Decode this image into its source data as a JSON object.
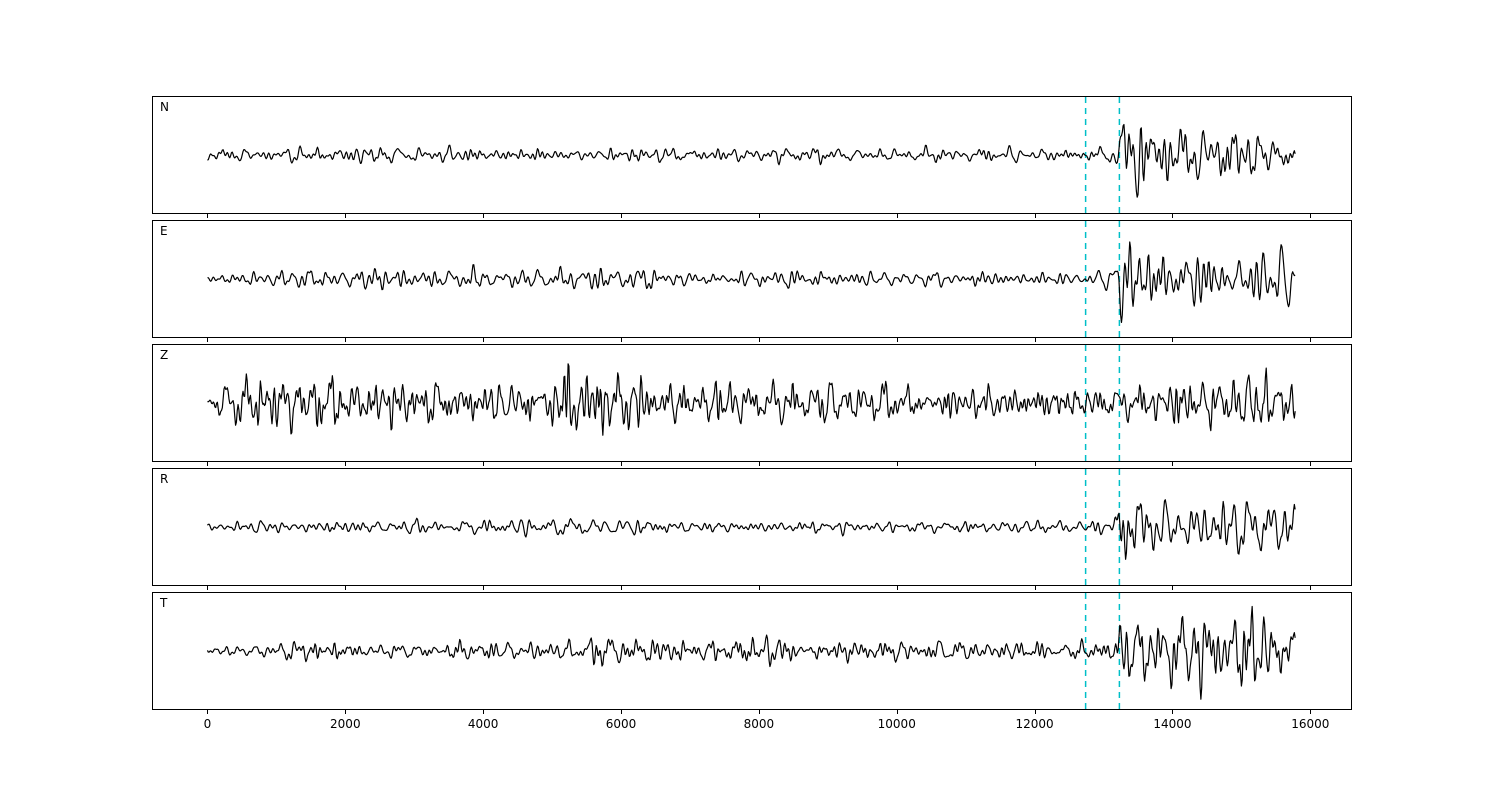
{
  "figure": {
    "background": "#ffffff",
    "trace_color": "#000000",
    "pick_color": "#00bfc8"
  },
  "chart_data": {
    "type": "line",
    "title": "",
    "xlabel": "",
    "ylabel": "",
    "legend": "none",
    "grid": false,
    "x_axis": {
      "lim": [
        -790,
        16590
      ],
      "ticks": [
        0,
        2000,
        4000,
        6000,
        8000,
        10000,
        12000,
        14000,
        16000
      ]
    },
    "x_range": [
      0,
      15790
    ],
    "sample_step": 12,
    "pick_lines": [
      {
        "x": 12740,
        "color": "#00bfc8",
        "style": "dashed"
      },
      {
        "x": 13230,
        "color": "#00bfc8",
        "style": "dashed"
      }
    ],
    "channels": [
      {
        "label": "N",
        "seed": 7,
        "period_band": [
          60,
          420
        ],
        "envelope": [
          [
            0,
            0.1
          ],
          [
            300,
            0.13
          ],
          [
            2000,
            0.16
          ],
          [
            5000,
            0.15
          ],
          [
            8000,
            0.14
          ],
          [
            11000,
            0.13
          ],
          [
            12740,
            0.14
          ],
          [
            13150,
            0.18
          ],
          [
            13230,
            0.95
          ],
          [
            13420,
            0.9
          ],
          [
            13800,
            0.55
          ],
          [
            14300,
            0.65
          ],
          [
            14800,
            0.5
          ],
          [
            15300,
            0.6
          ],
          [
            15790,
            0.45
          ]
        ]
      },
      {
        "label": "E",
        "seed": 11,
        "period_band": [
          60,
          420
        ],
        "envelope": [
          [
            0,
            0.08
          ],
          [
            400,
            0.14
          ],
          [
            1500,
            0.22
          ],
          [
            3000,
            0.2
          ],
          [
            5500,
            0.22
          ],
          [
            7000,
            0.18
          ],
          [
            9000,
            0.16
          ],
          [
            11000,
            0.14
          ],
          [
            12740,
            0.15
          ],
          [
            13150,
            0.2
          ],
          [
            13240,
            0.95
          ],
          [
            13500,
            0.8
          ],
          [
            14000,
            0.6
          ],
          [
            14600,
            0.65
          ],
          [
            15200,
            0.5
          ],
          [
            15790,
            0.6
          ]
        ]
      },
      {
        "label": "Z",
        "seed": 23,
        "period_band": [
          48,
          380
        ],
        "envelope": [
          [
            0,
            0.06
          ],
          [
            350,
            0.45
          ],
          [
            700,
            0.6
          ],
          [
            1200,
            0.55
          ],
          [
            1700,
            0.65
          ],
          [
            2200,
            0.5
          ],
          [
            3000,
            0.45
          ],
          [
            4000,
            0.4
          ],
          [
            5000,
            0.5
          ],
          [
            5350,
            0.9
          ],
          [
            5700,
            0.8
          ],
          [
            6100,
            0.75
          ],
          [
            6500,
            0.5
          ],
          [
            7500,
            0.42
          ],
          [
            9000,
            0.38
          ],
          [
            10500,
            0.35
          ],
          [
            12000,
            0.33
          ],
          [
            13230,
            0.38
          ],
          [
            14000,
            0.45
          ],
          [
            14800,
            0.5
          ],
          [
            15300,
            0.8
          ],
          [
            15600,
            0.6
          ],
          [
            15790,
            0.3
          ]
        ]
      },
      {
        "label": "R",
        "seed": 5,
        "period_band": [
          60,
          420
        ],
        "envelope": [
          [
            0,
            0.09
          ],
          [
            500,
            0.12
          ],
          [
            2000,
            0.14
          ],
          [
            5200,
            0.17
          ],
          [
            6000,
            0.14
          ],
          [
            8000,
            0.13
          ],
          [
            10000,
            0.12
          ],
          [
            12740,
            0.13
          ],
          [
            13150,
            0.16
          ],
          [
            13240,
            0.95
          ],
          [
            13500,
            0.85
          ],
          [
            14000,
            0.55
          ],
          [
            14700,
            0.6
          ],
          [
            15300,
            0.5
          ],
          [
            15790,
            0.45
          ]
        ]
      },
      {
        "label": "T",
        "seed": 31,
        "period_band": [
          55,
          400
        ],
        "envelope": [
          [
            0,
            0.08
          ],
          [
            600,
            0.15
          ],
          [
            1500,
            0.18
          ],
          [
            3000,
            0.16
          ],
          [
            5000,
            0.2
          ],
          [
            5800,
            0.3
          ],
          [
            7000,
            0.25
          ],
          [
            8000,
            0.3
          ],
          [
            9000,
            0.22
          ],
          [
            10500,
            0.2
          ],
          [
            12000,
            0.18
          ],
          [
            12740,
            0.2
          ],
          [
            13150,
            0.25
          ],
          [
            13250,
            0.9
          ],
          [
            13700,
            0.7
          ],
          [
            14300,
            0.8
          ],
          [
            14800,
            0.6
          ],
          [
            15300,
            0.95
          ],
          [
            15790,
            0.5
          ]
        ]
      }
    ]
  }
}
